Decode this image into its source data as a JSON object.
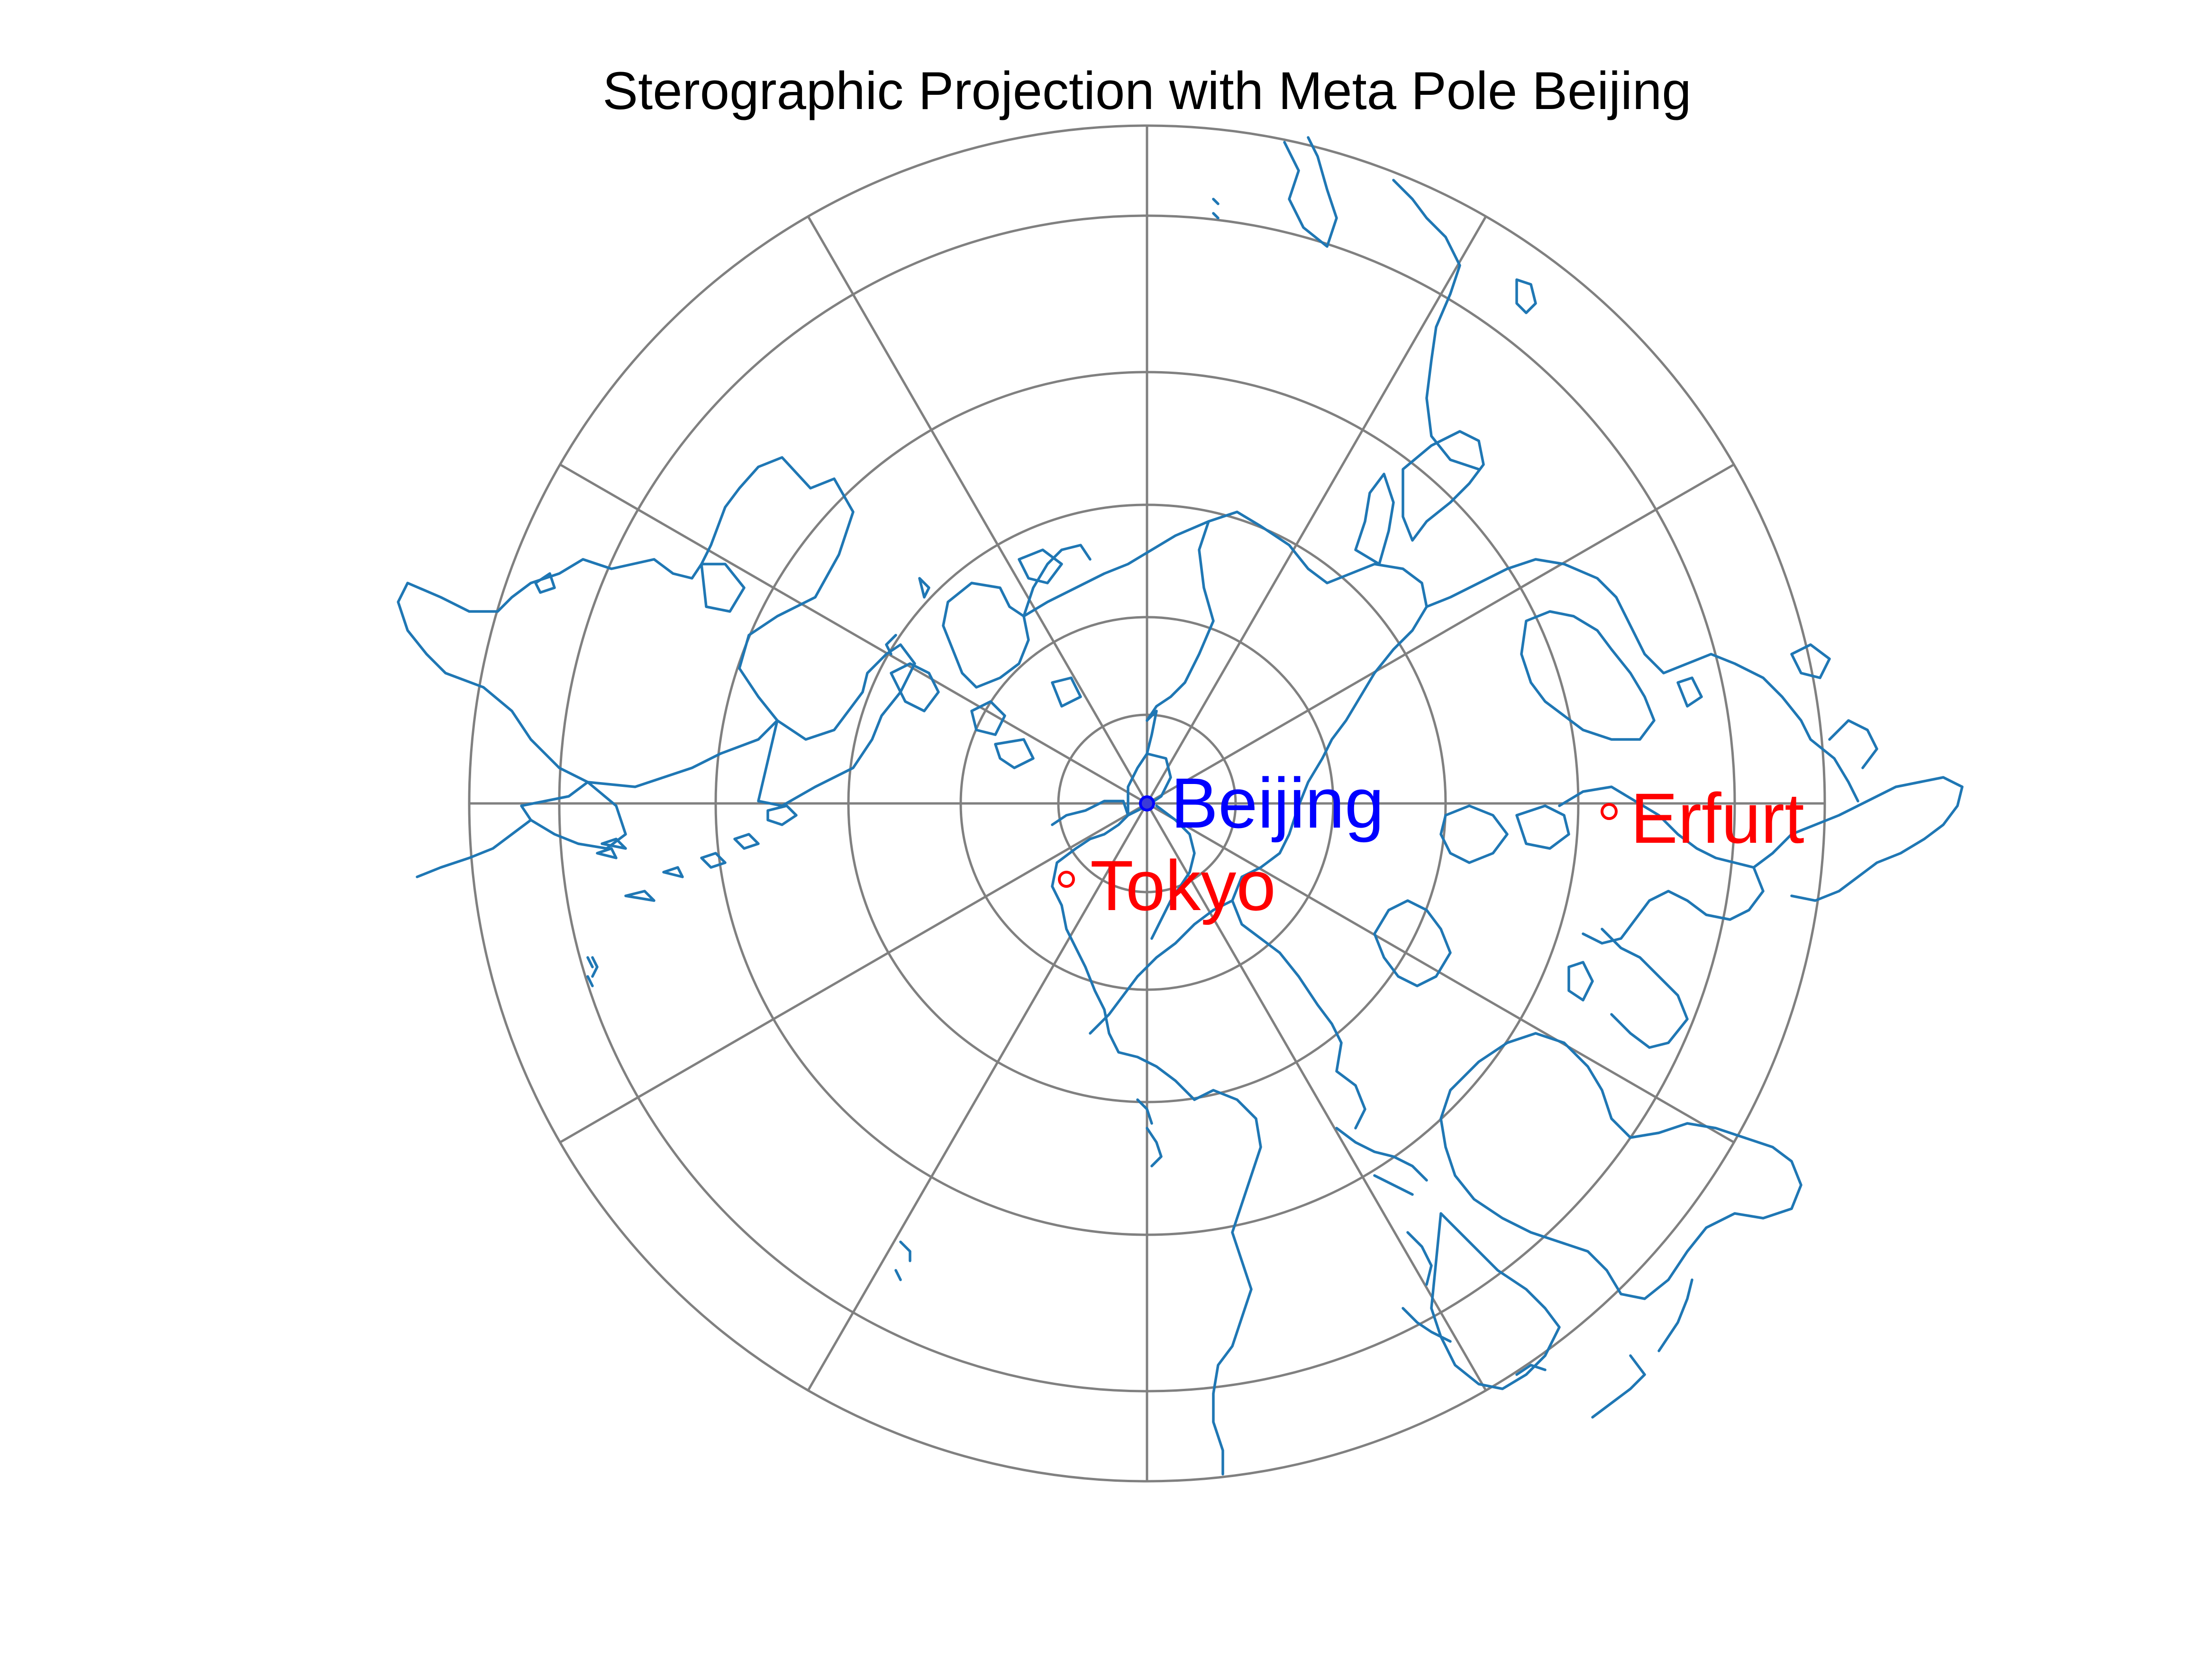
{
  "title": "Sterographic Projection with Meta Pole Beijing",
  "colors": {
    "background": "#ffffff",
    "graticule": "#808080",
    "coastline": "#1f77b4",
    "pole_city": "#0000ff",
    "other_city": "#ff0000"
  },
  "cities": {
    "pole": {
      "name": "Beijing"
    },
    "others": [
      {
        "name": "Erfurt"
      },
      {
        "name": "Tokyo"
      }
    ]
  },
  "graticule": {
    "rings": 5,
    "meridians": 12
  }
}
